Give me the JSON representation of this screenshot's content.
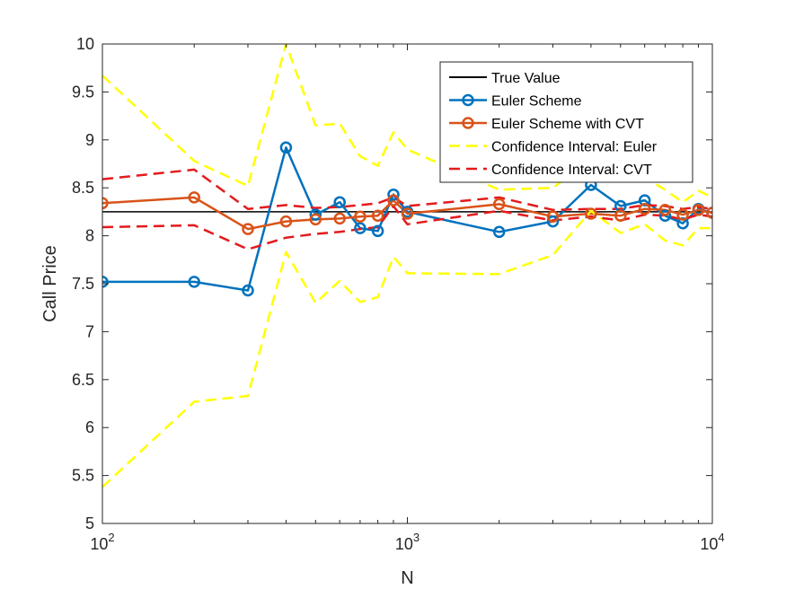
{
  "chart_data": {
    "type": "line",
    "xscale": "log",
    "xlim": [
      100,
      10000
    ],
    "ylim": [
      5,
      10
    ],
    "xlabel": "N",
    "ylabel": "Call Price",
    "grid": false,
    "legend_position": "top-right",
    "x_tick_labels": [
      {
        "base": "10",
        "exp": "2",
        "value": 100
      },
      {
        "base": "10",
        "exp": "3",
        "value": 1000
      },
      {
        "base": "10",
        "exp": "4",
        "value": 10000
      }
    ],
    "y_ticks": [
      "5",
      "5.5",
      "6",
      "6.5",
      "7",
      "7.5",
      "8",
      "8.5",
      "9",
      "9.5",
      "10"
    ],
    "x": [
      100,
      200,
      300,
      400,
      500,
      600,
      700,
      800,
      900,
      1000,
      2000,
      3000,
      4000,
      5000,
      6000,
      7000,
      8000,
      9000,
      10000
    ],
    "series": [
      {
        "name": "True Value",
        "color": "#000000",
        "style": "solid",
        "marker": "none",
        "values": [
          8.25,
          8.25,
          8.25,
          8.25,
          8.25,
          8.25,
          8.25,
          8.25,
          8.25,
          8.25,
          8.25,
          8.25,
          8.25,
          8.25,
          8.25,
          8.25,
          8.25,
          8.25,
          8.25
        ]
      },
      {
        "name": "Euler Scheme",
        "color": "#0072bd",
        "style": "solid",
        "marker": "circle",
        "values": [
          7.52,
          7.52,
          7.43,
          8.92,
          8.22,
          8.35,
          8.08,
          8.05,
          8.43,
          8.25,
          8.04,
          8.15,
          8.53,
          8.31,
          8.37,
          8.21,
          8.13,
          8.28,
          8.24
        ]
      },
      {
        "name": "Euler Scheme with CVT",
        "color": "#d95319",
        "style": "solid",
        "marker": "circle",
        "values": [
          8.34,
          8.4,
          8.07,
          8.15,
          8.17,
          8.18,
          8.2,
          8.21,
          8.37,
          8.23,
          8.33,
          8.2,
          8.23,
          8.21,
          8.28,
          8.27,
          8.22,
          8.27,
          8.24
        ]
      },
      {
        "name": "Confidence Interval: Euler",
        "color": "#ffff00",
        "style": "dashed",
        "marker": "none",
        "upper": [
          9.67,
          8.78,
          8.52,
          10.0,
          9.15,
          9.17,
          8.83,
          8.73,
          9.08,
          8.9,
          8.48,
          8.5,
          8.8,
          8.58,
          8.61,
          8.48,
          8.35,
          8.47,
          8.4
        ],
        "lower": [
          5.38,
          6.27,
          6.33,
          7.83,
          7.3,
          7.53,
          7.31,
          7.36,
          7.78,
          7.61,
          7.6,
          7.8,
          8.26,
          8.03,
          8.12,
          7.95,
          7.9,
          8.08,
          8.08
        ]
      },
      {
        "name": "Confidence Interval: CVT",
        "color": "#e41a1c",
        "style": "dashed",
        "marker": "none",
        "upper": [
          8.59,
          8.69,
          8.28,
          8.32,
          8.29,
          8.3,
          8.32,
          8.34,
          8.4,
          8.31,
          8.4,
          8.27,
          8.28,
          8.28,
          8.32,
          8.31,
          8.28,
          8.3,
          8.28
        ],
        "lower": [
          8.09,
          8.11,
          7.86,
          7.98,
          8.02,
          8.04,
          8.07,
          8.09,
          8.31,
          8.12,
          8.26,
          8.16,
          8.2,
          8.16,
          8.22,
          8.21,
          8.17,
          8.22,
          8.2
        ]
      }
    ]
  }
}
